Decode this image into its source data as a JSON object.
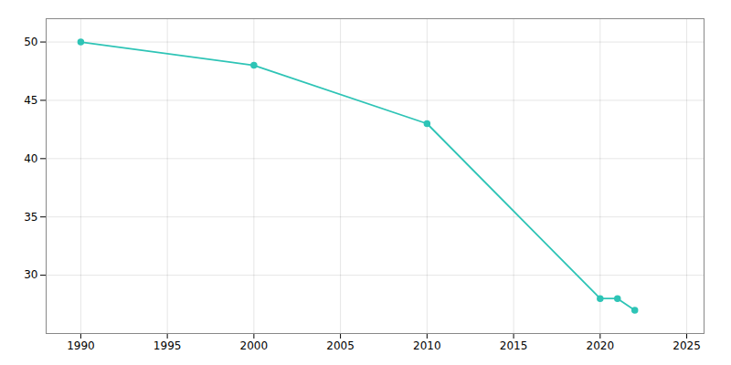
{
  "chart_data": {
    "type": "line",
    "x": [
      1990,
      2000,
      2010,
      2020,
      2021,
      2022
    ],
    "values": [
      50,
      48,
      43,
      28,
      28,
      27
    ],
    "color": "#2EC4B6",
    "marker": "circle",
    "xlim": [
      1988,
      2026
    ],
    "ylim": [
      25,
      52
    ],
    "xticks": [
      1990,
      1995,
      2000,
      2005,
      2010,
      2015,
      2020,
      2025
    ],
    "yticks": [
      30,
      35,
      40,
      45,
      50
    ],
    "grid": true
  }
}
